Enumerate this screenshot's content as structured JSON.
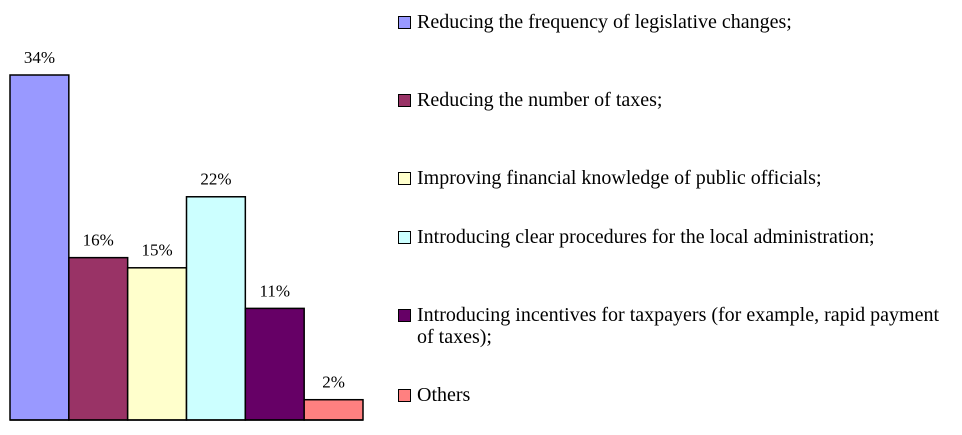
{
  "chart_data": {
    "type": "bar",
    "categories": [
      "Reducing the frequency of legislative changes;",
      "Reducing the number of taxes;",
      "Improving financial knowledge of public officials;",
      "Introducing clear procedures for the local administration;",
      "Introducing incentives for taxpayers (for example, rapid payment of taxes);",
      "Others"
    ],
    "values": [
      34,
      16,
      15,
      22,
      11,
      2
    ],
    "value_labels": [
      "34%",
      "16%",
      "15%",
      "22%",
      "11%",
      "2%"
    ],
    "colors": [
      "#9999ff",
      "#993366",
      "#ffffcc",
      "#ccffff",
      "#660066",
      "#ff8080"
    ],
    "legend": "right"
  }
}
